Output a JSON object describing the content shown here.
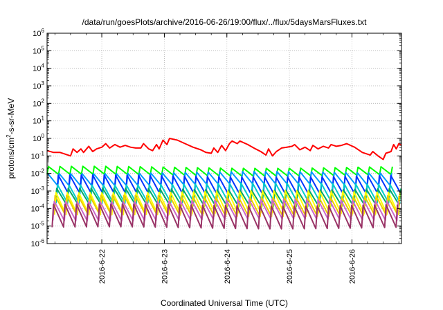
{
  "chart_data": {
    "type": "line",
    "title": "/data/run/goesPlots/archive/2016-06-26/19:00/flux/../flux/5daysMarsFluxes.txt",
    "xlabel": "Coordinated Universal Time (UTC)",
    "ylabel": "protons/cm²-s-sr-MeV",
    "ylabel_parts": {
      "pre": "protons/cm",
      "sup": "2",
      "post": "-s-sr-MeV"
    },
    "yscale": "log",
    "ylim_exp": [
      -6,
      6
    ],
    "y_tick_labels": [
      {
        "base": "10",
        "exp": "-6"
      },
      {
        "base": "10",
        "exp": "-5"
      },
      {
        "base": "10",
        "exp": "-4"
      },
      {
        "base": "10",
        "exp": "-3"
      },
      {
        "base": "10",
        "exp": "-2"
      },
      {
        "base": "10",
        "exp": "-1"
      },
      {
        "base": "10",
        "exp": "0"
      },
      {
        "base": "10",
        "exp": "1"
      },
      {
        "base": "10",
        "exp": "2"
      },
      {
        "base": "10",
        "exp": "3"
      },
      {
        "base": "10",
        "exp": "4"
      },
      {
        "base": "10",
        "exp": "5"
      },
      {
        "base": "10",
        "exp": "6"
      }
    ],
    "xlim": [
      "2016-06-21T03:00",
      "2016-06-26T19:00"
    ],
    "x_ticks": [
      "2016-06-22",
      "2016-06-23",
      "2016-06-24",
      "2016-06-25",
      "2016-06-26"
    ],
    "x_tick_labels": [
      "2016-6-22",
      "2016-6-23",
      "2016-6-24",
      "2016-6-25",
      "2016-6-26"
    ],
    "grid": true,
    "legend": "none",
    "red_series": {
      "color": "#ff0000",
      "points": [
        [
          "2016-06-21T03:00",
          -0.7
        ],
        [
          "2016-06-21T05:30",
          -0.8
        ],
        [
          "2016-06-21T08:00",
          -0.8
        ],
        [
          "2016-06-21T10:00",
          -0.9
        ],
        [
          "2016-06-21T12:00",
          -1.0
        ],
        [
          "2016-06-21T13:00",
          -0.6
        ],
        [
          "2016-06-21T14:30",
          -0.8
        ],
        [
          "2016-06-21T16:00",
          -0.6
        ],
        [
          "2016-06-21T17:00",
          -0.8
        ],
        [
          "2016-06-21T19:00",
          -0.45
        ],
        [
          "2016-06-21T20:30",
          -0.75
        ],
        [
          "2016-06-21T22:00",
          -0.6
        ],
        [
          "2016-06-22T00:00",
          -0.5
        ],
        [
          "2016-06-22T01:30",
          -0.3
        ],
        [
          "2016-06-22T03:00",
          -0.55
        ],
        [
          "2016-06-22T05:00",
          -0.35
        ],
        [
          "2016-06-22T07:00",
          -0.5
        ],
        [
          "2016-06-22T09:00",
          -0.4
        ],
        [
          "2016-06-22T11:00",
          -0.5
        ],
        [
          "2016-06-22T13:00",
          -0.55
        ],
        [
          "2016-06-22T15:00",
          -0.55
        ],
        [
          "2016-06-22T16:00",
          -0.3
        ],
        [
          "2016-06-22T18:00",
          -0.6
        ],
        [
          "2016-06-22T19:30",
          -0.7
        ],
        [
          "2016-06-22T21:00",
          -0.35
        ],
        [
          "2016-06-22T22:00",
          -0.6
        ],
        [
          "2016-06-22T23:30",
          -0.1
        ],
        [
          "2016-06-23T01:00",
          -0.35
        ],
        [
          "2016-06-23T02:00",
          0.0
        ],
        [
          "2016-06-23T05:00",
          -0.1
        ],
        [
          "2016-06-23T08:00",
          -0.3
        ],
        [
          "2016-06-23T11:00",
          -0.5
        ],
        [
          "2016-06-23T14:00",
          -0.65
        ],
        [
          "2016-06-23T16:00",
          -0.8
        ],
        [
          "2016-06-23T18:00",
          -0.85
        ],
        [
          "2016-06-23T19:00",
          -0.55
        ],
        [
          "2016-06-23T20:30",
          -0.8
        ],
        [
          "2016-06-23T22:00",
          -0.4
        ],
        [
          "2016-06-23T23:30",
          -0.7
        ],
        [
          "2016-06-24T01:00",
          -0.3
        ],
        [
          "2016-06-24T02:00",
          -0.15
        ],
        [
          "2016-06-24T04:00",
          -0.3
        ],
        [
          "2016-06-24T05:00",
          -0.15
        ],
        [
          "2016-06-24T08:00",
          -0.35
        ],
        [
          "2016-06-24T11:00",
          -0.6
        ],
        [
          "2016-06-24T13:00",
          -0.75
        ],
        [
          "2016-06-24T15:00",
          -0.95
        ],
        [
          "2016-06-24T16:00",
          -0.6
        ],
        [
          "2016-06-24T17:30",
          -1.0
        ],
        [
          "2016-06-24T19:00",
          -0.75
        ],
        [
          "2016-06-24T21:00",
          -0.55
        ],
        [
          "2016-06-24T23:00",
          -0.5
        ],
        [
          "2016-06-25T01:00",
          -0.45
        ],
        [
          "2016-06-25T02:00",
          -0.35
        ],
        [
          "2016-06-25T04:00",
          -0.65
        ],
        [
          "2016-06-25T06:00",
          -0.5
        ],
        [
          "2016-06-25T08:00",
          -0.7
        ],
        [
          "2016-06-25T09:00",
          -0.4
        ],
        [
          "2016-06-25T11:00",
          -0.6
        ],
        [
          "2016-06-25T13:00",
          -0.45
        ],
        [
          "2016-06-25T15:00",
          -0.55
        ],
        [
          "2016-06-25T16:00",
          -0.35
        ],
        [
          "2016-06-25T18:00",
          -0.45
        ],
        [
          "2016-06-25T20:00",
          -0.4
        ],
        [
          "2016-06-25T22:00",
          -0.3
        ],
        [
          "2016-06-26T01:00",
          -0.5
        ],
        [
          "2016-06-26T04:00",
          -0.8
        ],
        [
          "2016-06-26T07:00",
          -0.95
        ],
        [
          "2016-06-26T08:00",
          -0.75
        ],
        [
          "2016-06-26T10:00",
          -1.0
        ],
        [
          "2016-06-26T12:00",
          -1.2
        ],
        [
          "2016-06-26T13:00",
          -0.85
        ],
        [
          "2016-06-26T15:00",
          -0.75
        ],
        [
          "2016-06-26T16:00",
          -0.35
        ],
        [
          "2016-06-26T17:00",
          -0.6
        ],
        [
          "2016-06-26T18:00",
          -0.3
        ],
        [
          "2016-06-26T19:00",
          -0.4
        ]
      ]
    },
    "periodic_series": {
      "period_hours": 4.4,
      "series": [
        {
          "color": "#00ff00",
          "min_exp": -2.1,
          "max_exp": -1.65
        },
        {
          "color": "#0099ff",
          "min_exp": -2.65,
          "max_exp": -1.95
        },
        {
          "color": "#0033ff",
          "min_exp": -3.2,
          "max_exp": -2.15
        },
        {
          "color": "#00cccc",
          "min_exp": -3.65,
          "max_exp": -2.6
        },
        {
          "color": "#00aa66",
          "min_exp": -3.85,
          "max_exp": -2.9
        },
        {
          "color": "#ffff00",
          "min_exp": -4.3,
          "max_exp": -3.05
        },
        {
          "color": "#eecc00",
          "min_exp": -4.4,
          "max_exp": -3.3
        },
        {
          "color": "#cc66cc",
          "min_exp": -4.65,
          "max_exp": -3.55
        },
        {
          "color": "#993366",
          "min_exp": -5.1,
          "max_exp": -3.8
        }
      ]
    }
  }
}
